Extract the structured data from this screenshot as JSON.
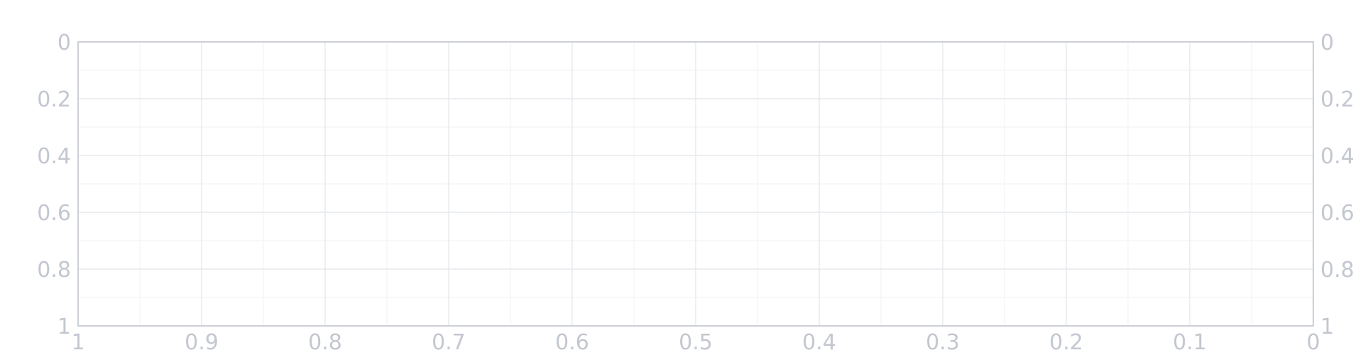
{
  "chart_data": {
    "type": "line",
    "title": "",
    "xlabel": "",
    "ylabel": "",
    "series": [],
    "x_axis": {
      "range": [
        1,
        0
      ],
      "reversed": true,
      "ticks": [
        1,
        0.9,
        0.8,
        0.7,
        0.6,
        0.5,
        0.4,
        0.3,
        0.2,
        0.1,
        0
      ],
      "tick_labels": [
        "1",
        "0.9",
        "0.8",
        "0.7",
        "0.6",
        "0.5",
        "0.4",
        "0.3",
        "0.2",
        "0.1",
        "0"
      ],
      "minor_ticks": [
        0.95,
        0.85,
        0.75,
        0.65,
        0.55,
        0.45,
        0.35,
        0.25,
        0.15,
        0.05
      ]
    },
    "y_axis": {
      "range": [
        0,
        1
      ],
      "reversed": true,
      "ticks": [
        0,
        0.2,
        0.4,
        0.6,
        0.8,
        1
      ],
      "tick_labels": [
        "0",
        "0.2",
        "0.4",
        "0.6",
        "0.8",
        "1"
      ],
      "minor_ticks": [
        0.1,
        0.3,
        0.5,
        0.7,
        0.9
      ]
    },
    "y_axis_right": {
      "range": [
        0,
        1
      ],
      "reversed": true,
      "ticks": [
        0,
        0.2,
        0.4,
        0.6,
        0.8,
        1
      ],
      "tick_labels": [
        "0",
        "0.2",
        "0.4",
        "0.6",
        "0.8",
        "1"
      ]
    },
    "grid": true,
    "legend": "none",
    "colors": {
      "tick_label": "#c3c7cf",
      "grid_major": "#e6e8ec",
      "grid_minor": "#f3f4f6",
      "axis_line": "#c9ccd2"
    }
  }
}
